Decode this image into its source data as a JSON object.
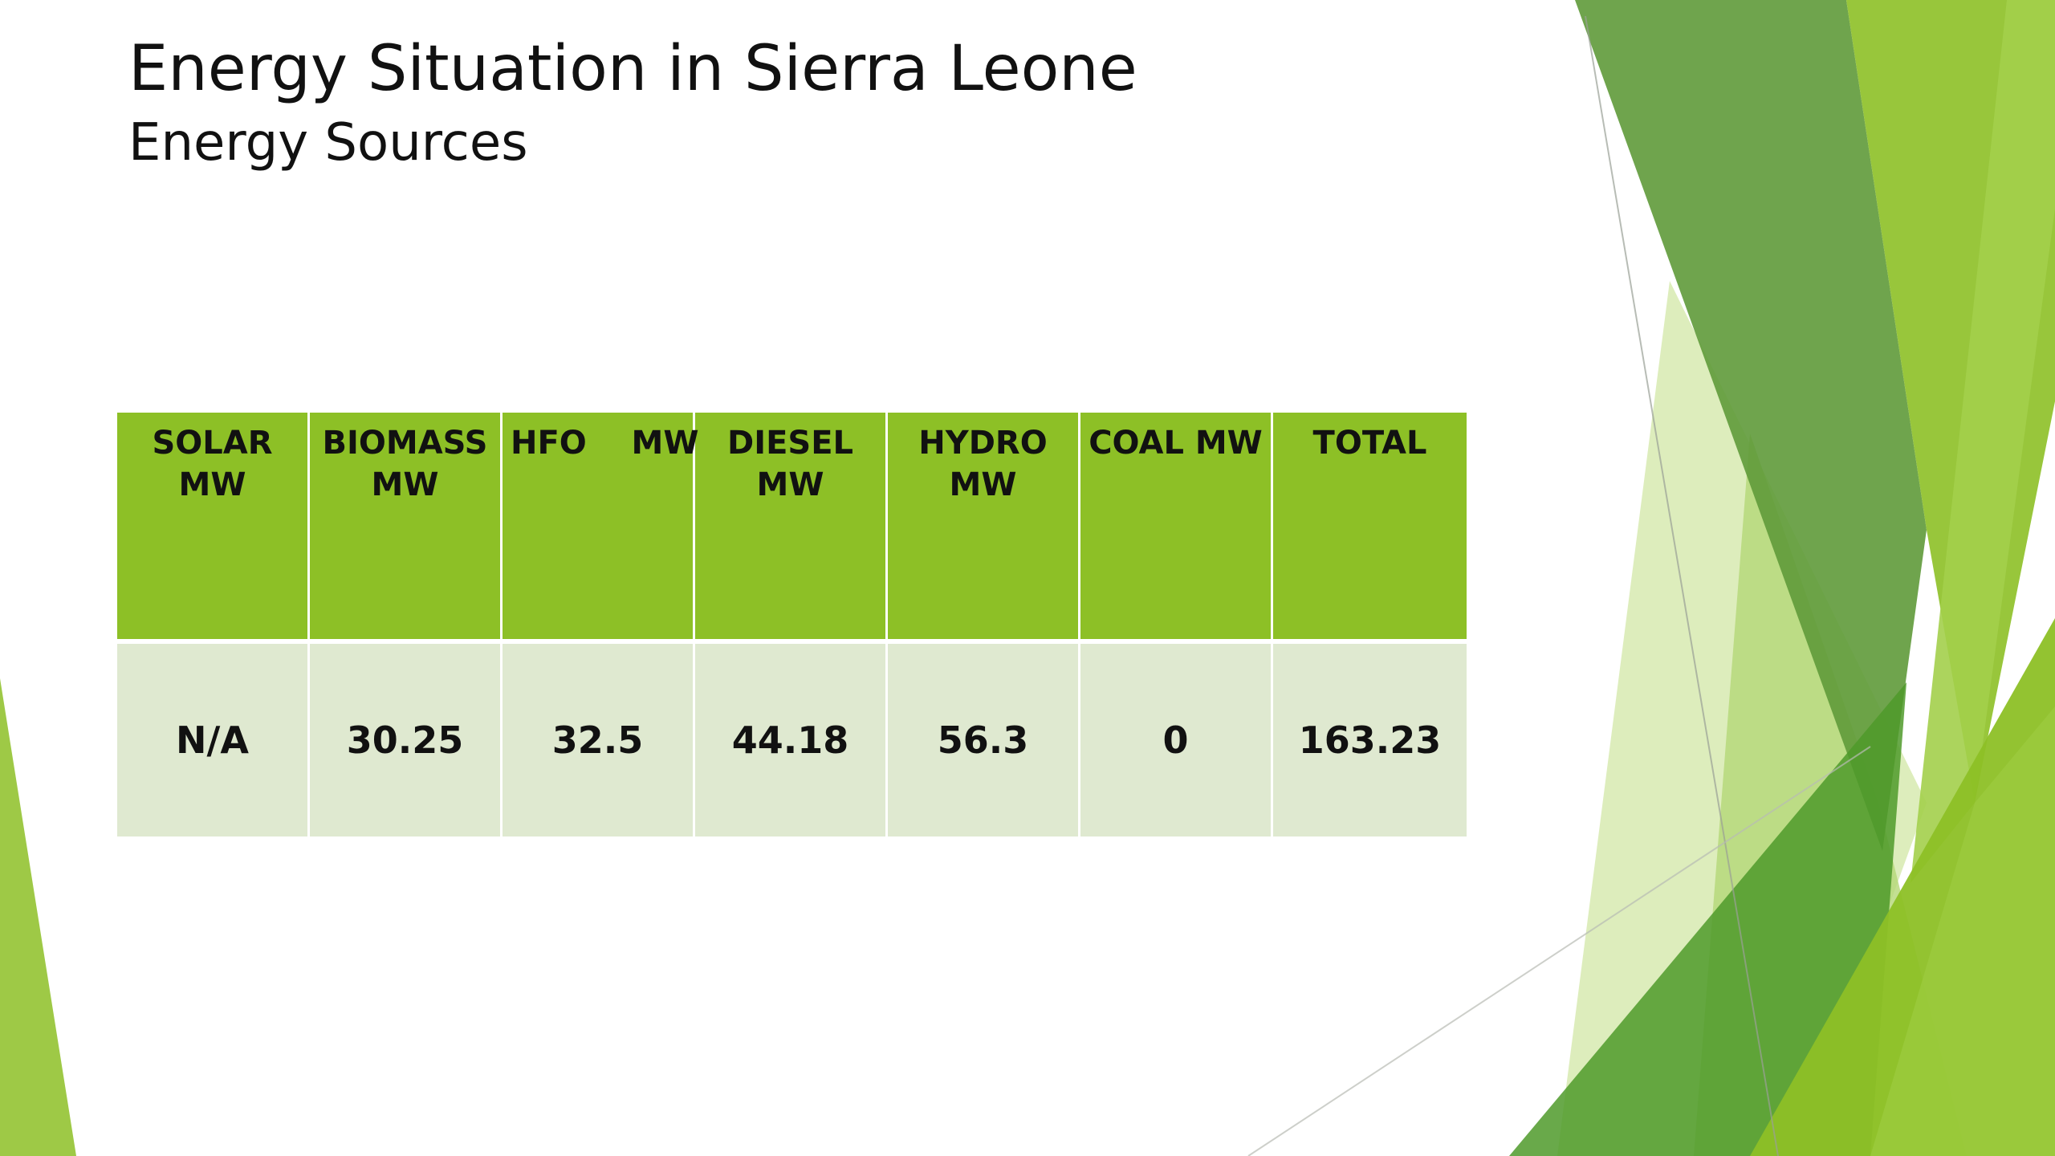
{
  "slide": {
    "title": "Energy Situation in Sierra Leone",
    "subtitle": "Energy Sources"
  },
  "table": {
    "headers": [
      "SOLAR MW",
      "BIOMASS MW",
      "HFO    MW",
      "DIESEL MW",
      "HYDRO MW",
      "COAL MW",
      "TOTAL"
    ],
    "row": [
      "N/A",
      "30.25",
      "32.5",
      "44.18",
      "56.3",
      "0",
      "163.23"
    ]
  },
  "colors": {
    "header_fill": "#8dc026",
    "row_fill": "#dfe9d0",
    "accent_light": "#9ccb3f",
    "accent_dark": "#5f9a3a",
    "accent_pale": "#d9ebb5",
    "text": "#111111"
  }
}
